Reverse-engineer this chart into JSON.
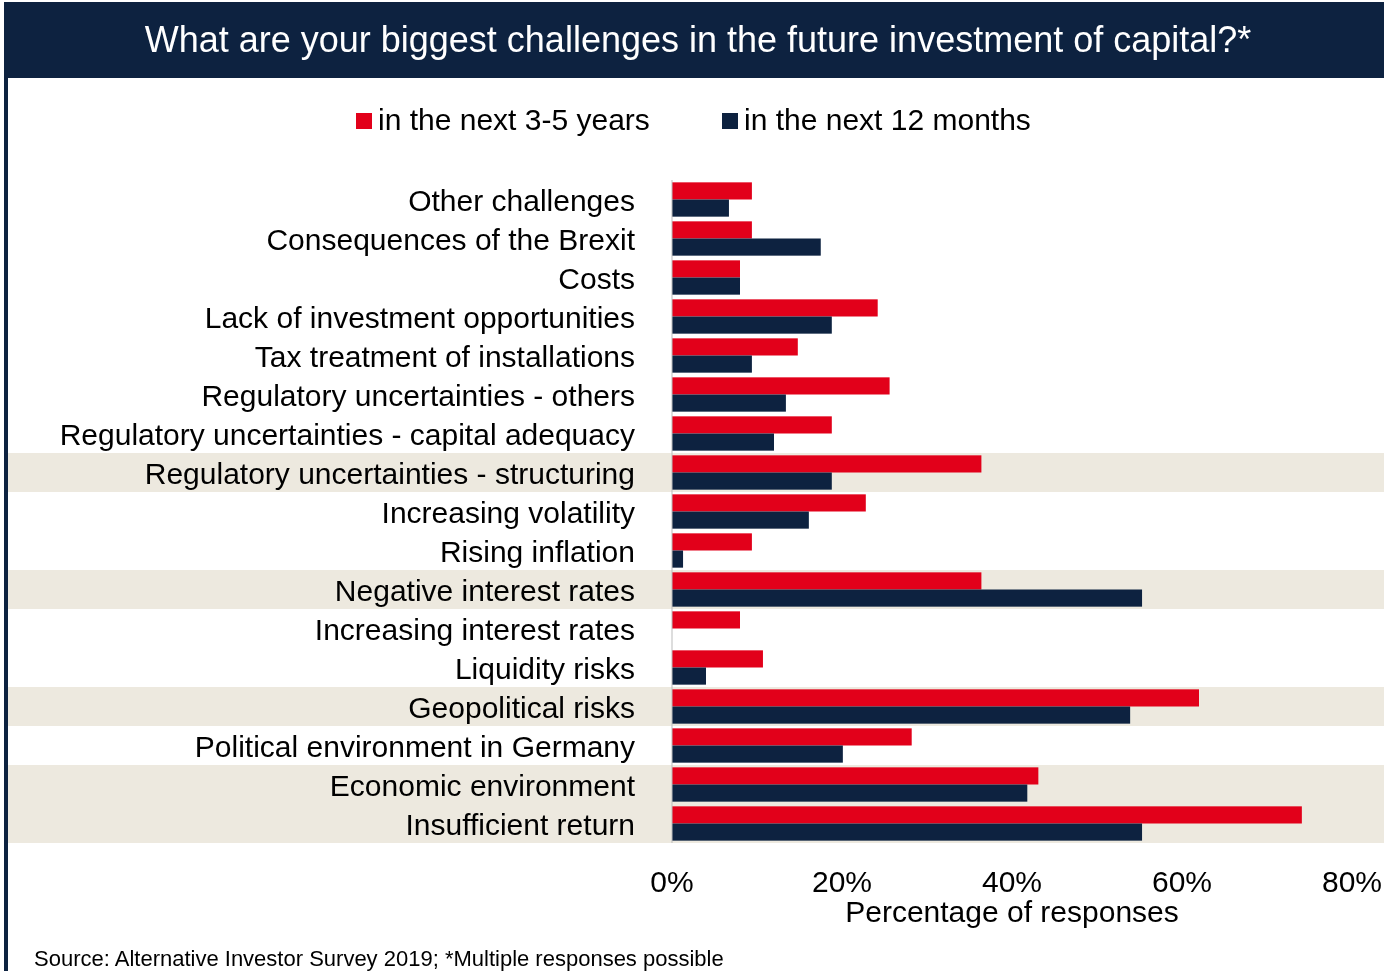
{
  "chart_data": {
    "type": "bar",
    "orientation": "horizontal",
    "title": "What are your biggest challenges in the future investment of capital?*",
    "xlabel": "Percentage of responses",
    "categories": [
      "Other challenges",
      "Consequences of the Brexit",
      "Costs",
      "Lack of investment opportunities",
      "Tax treatment of installations",
      "Regulatory uncertainties - others",
      "Regulatory uncertainties - capital adequacy",
      "Regulatory uncertainties - structuring",
      "Increasing volatility",
      "Rising inflation",
      "Negative interest rates",
      "Increasing interest rates",
      "Liquidity risks",
      "Geopolitical risks",
      "Political environment in Germany",
      "Economic environment",
      "Insufficient return"
    ],
    "series": [
      {
        "name": "in the next 3-5 years",
        "color": "#e2001a",
        "values": [
          9.4,
          9.4,
          8,
          24.2,
          14.8,
          25.6,
          18.8,
          36.4,
          22.8,
          9.4,
          36.4,
          8,
          10.7,
          62,
          28.2,
          43.1,
          74.1
        ]
      },
      {
        "name": "in the next 12 months",
        "color": "#0d2240",
        "values": [
          6.7,
          17.5,
          8,
          18.8,
          9.4,
          13.4,
          12,
          18.8,
          16.1,
          1.3,
          55.3,
          0,
          4,
          53.9,
          20.1,
          41.8,
          55.3
        ]
      }
    ],
    "xlim": [
      0,
      80
    ],
    "xticks": [
      {
        "value": 0,
        "label": "0%"
      },
      {
        "value": 20,
        "label": "20%"
      },
      {
        "value": 40,
        "label": "40%"
      },
      {
        "value": 60,
        "label": "60%"
      },
      {
        "value": 80,
        "label": "80%"
      }
    ],
    "bands": [
      {
        "axis": "y",
        "from": "Regulatory uncertainties - structuring",
        "to": "Regulatory uncertainties - structuring",
        "color": "#ede9df"
      },
      {
        "axis": "y",
        "from": "Negative interest rates",
        "to": "Negative interest rates",
        "color": "#ede9df"
      },
      {
        "axis": "y",
        "from": "Geopolitical risks",
        "to": "Geopolitical risks",
        "color": "#ede9df"
      },
      {
        "axis": "y",
        "from": "Economic environment",
        "to": "Insufficient return",
        "color": "#ede9df"
      }
    ],
    "legend": "top",
    "grid": false,
    "annotations": [
      "Source: Alternative Investor Survey 2019; *Multiple responses possible"
    ]
  }
}
